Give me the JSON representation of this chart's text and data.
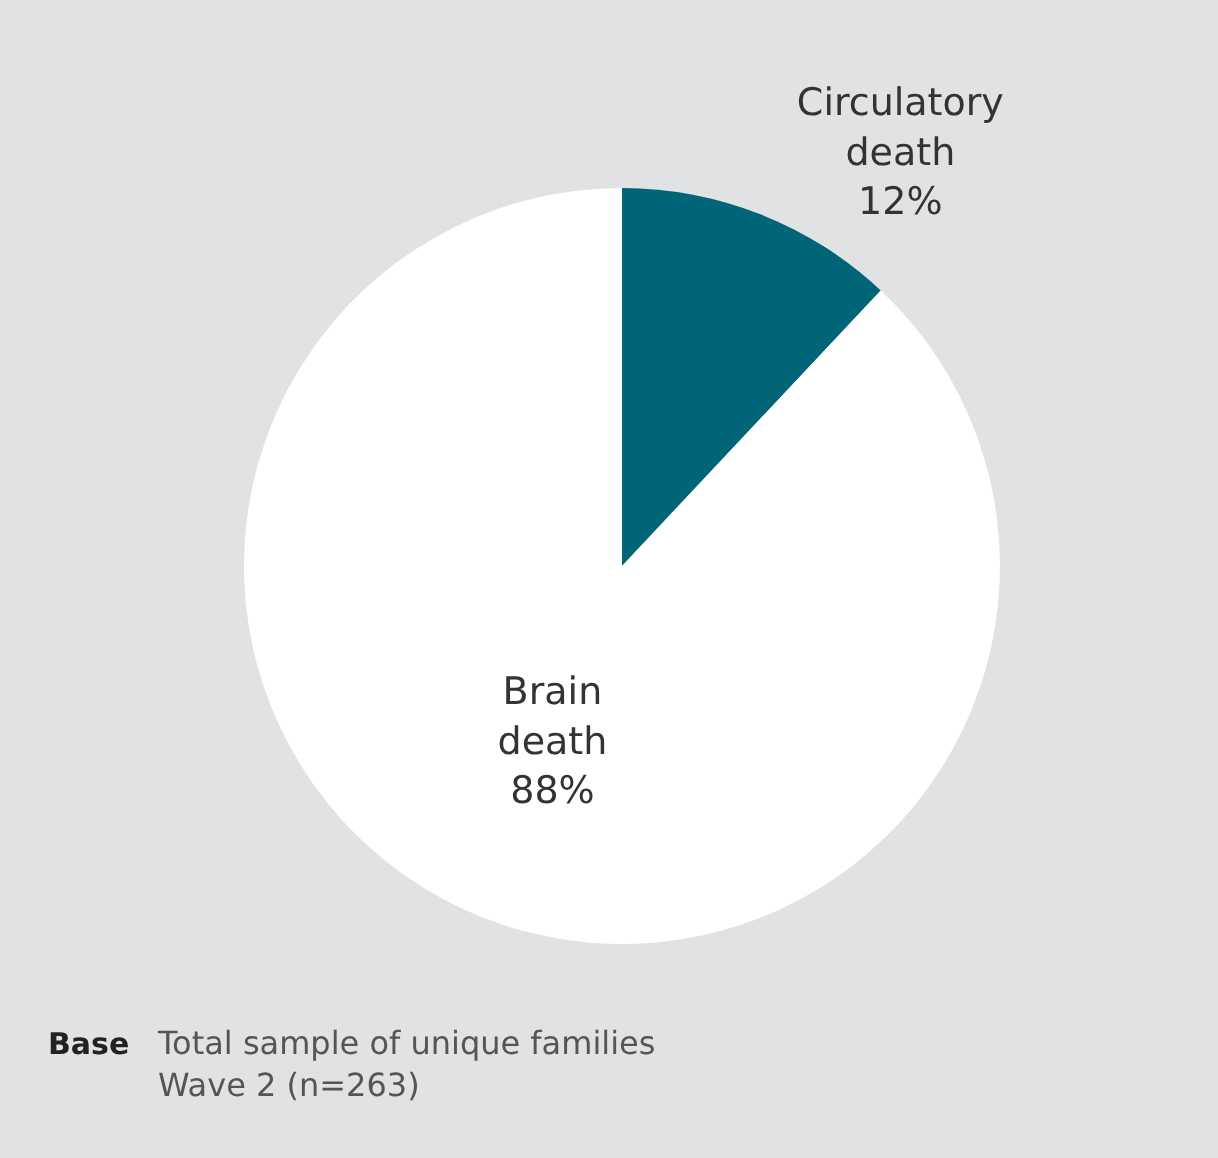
{
  "chart_data": {
    "type": "pie",
    "categories": [
      "Circulatory death",
      "Brain death"
    ],
    "values": [
      12,
      88
    ],
    "colors": [
      "#006677",
      "#ffffff"
    ],
    "value_labels": [
      "12%",
      "88%"
    ],
    "annotations": [
      "Base",
      "Total sample of unique families\nWave 2 (n=263)"
    ]
  }
}
